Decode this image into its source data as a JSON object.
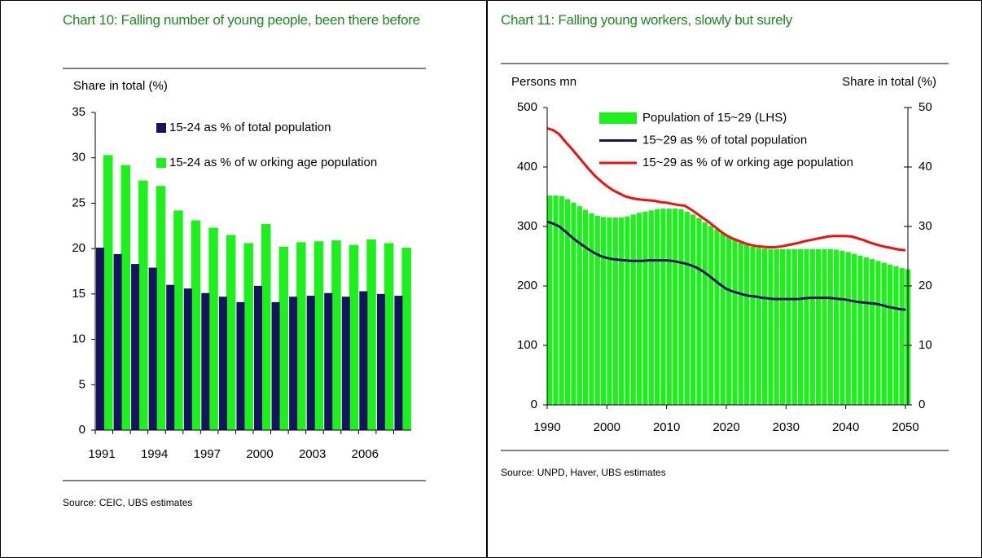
{
  "chart_data": [
    {
      "type": "bar",
      "title": "Chart 10: Falling number of young people, been there before",
      "ylabel": "Share in total (%)",
      "source": "Source: CEIC, UBS estimates",
      "categories": [
        "1991",
        null,
        null,
        "1994",
        null,
        null,
        "1997",
        null,
        null,
        "2000",
        null,
        null,
        "2003",
        null,
        null,
        "2006",
        null,
        null
      ],
      "series": [
        {
          "name": "15-24 as % of total population",
          "color": "#14145f",
          "values": [
            20.1,
            19.4,
            18.3,
            17.9,
            16.0,
            15.6,
            15.1,
            14.7,
            14.1,
            15.9,
            14.1,
            14.7,
            14.8,
            15.1,
            14.7,
            15.3,
            15.0,
            14.8
          ]
        },
        {
          "name": "15-24 as % of w orking age population",
          "color": "#1ef01e",
          "values": [
            30.3,
            29.2,
            27.5,
            26.9,
            24.2,
            23.1,
            22.3,
            21.5,
            20.6,
            22.7,
            20.2,
            20.7,
            20.8,
            20.9,
            20.4,
            21.0,
            20.6,
            20.1
          ]
        }
      ],
      "ylim": [
        0,
        35
      ],
      "yticks": [
        0,
        5,
        10,
        15,
        20,
        25,
        30,
        35
      ]
    },
    {
      "type": "combo",
      "title": "Chart 11: Falling young workers, slowly but surely",
      "ylabel": "Persons mn",
      "y2label": "Share in total (%)",
      "source": "Source: UNPD, Haver, UBS estimates",
      "x": [
        1990,
        1991,
        1992,
        1993,
        1994,
        1995,
        1996,
        1997,
        1998,
        1999,
        2000,
        2001,
        2002,
        2003,
        2004,
        2005,
        2006,
        2007,
        2008,
        2009,
        2010,
        2011,
        2012,
        2013,
        2014,
        2015,
        2016,
        2017,
        2018,
        2019,
        2020,
        2021,
        2022,
        2023,
        2024,
        2025,
        2026,
        2027,
        2028,
        2029,
        2030,
        2031,
        2032,
        2033,
        2034,
        2035,
        2036,
        2037,
        2038,
        2039,
        2040,
        2041,
        2042,
        2043,
        2044,
        2045,
        2046,
        2047,
        2048,
        2049,
        2050
      ],
      "series": [
        {
          "name": "Population of 15~29 (LHS)",
          "type": "bar",
          "color": "#1ef01e",
          "values": [
            352,
            352,
            351,
            346,
            340,
            334,
            328,
            322,
            318,
            316,
            315,
            315,
            315,
            317,
            320,
            323,
            325,
            327,
            329,
            330,
            330,
            330,
            329,
            325,
            320,
            314,
            307,
            301,
            295,
            289,
            283,
            278,
            273,
            269,
            266,
            264,
            263,
            262,
            262,
            262,
            262,
            262,
            262,
            262,
            262,
            262,
            262,
            262,
            261,
            259,
            257,
            254,
            251,
            248,
            245,
            242,
            239,
            236,
            233,
            230,
            228
          ]
        },
        {
          "name": "15~29 as % of total population",
          "type": "line",
          "axis": "y2",
          "color": "#14145f",
          "values": [
            30.8,
            30.5,
            30.0,
            29.2,
            28.3,
            27.5,
            26.8,
            26.1,
            25.5,
            25.0,
            24.7,
            24.5,
            24.4,
            24.3,
            24.2,
            24.2,
            24.2,
            24.3,
            24.3,
            24.3,
            24.3,
            24.2,
            24.0,
            23.8,
            23.5,
            23.1,
            22.5,
            21.8,
            21.0,
            20.2,
            19.5,
            19.1,
            18.8,
            18.5,
            18.3,
            18.2,
            18.0,
            17.9,
            17.8,
            17.8,
            17.8,
            17.8,
            17.8,
            17.9,
            18.0,
            18.0,
            18.0,
            18.0,
            17.9,
            17.8,
            17.7,
            17.5,
            17.3,
            17.2,
            17.1,
            17.0,
            16.8,
            16.5,
            16.3,
            16.1,
            16.0
          ]
        },
        {
          "name": "15~29 as % of w orking age population",
          "type": "line",
          "axis": "y2",
          "color": "#ee1111",
          "values": [
            46.5,
            46.2,
            45.5,
            44.3,
            43.2,
            42.0,
            40.8,
            39.6,
            38.5,
            37.6,
            36.8,
            36.1,
            35.6,
            35.1,
            34.8,
            34.6,
            34.5,
            34.4,
            34.3,
            34.1,
            34.0,
            33.8,
            33.6,
            33.5,
            32.9,
            32.2,
            31.5,
            30.8,
            30.0,
            29.2,
            28.5,
            28.0,
            27.6,
            27.2,
            26.9,
            26.7,
            26.6,
            26.5,
            26.5,
            26.6,
            26.8,
            27.0,
            27.2,
            27.5,
            27.7,
            27.9,
            28.1,
            28.3,
            28.4,
            28.4,
            28.4,
            28.3,
            28.0,
            27.7,
            27.3,
            27.0,
            26.7,
            26.5,
            26.3,
            26.1,
            26.0
          ]
        }
      ],
      "xlim": [
        1990,
        2050
      ],
      "xticks": [
        1990,
        2000,
        2010,
        2020,
        2030,
        2040,
        2050
      ],
      "ylim": [
        0,
        500
      ],
      "yticks": [
        0,
        100,
        200,
        300,
        400,
        500
      ],
      "y2lim": [
        0,
        50
      ],
      "y2ticks": [
        0,
        10,
        20,
        30,
        40,
        50
      ]
    }
  ]
}
